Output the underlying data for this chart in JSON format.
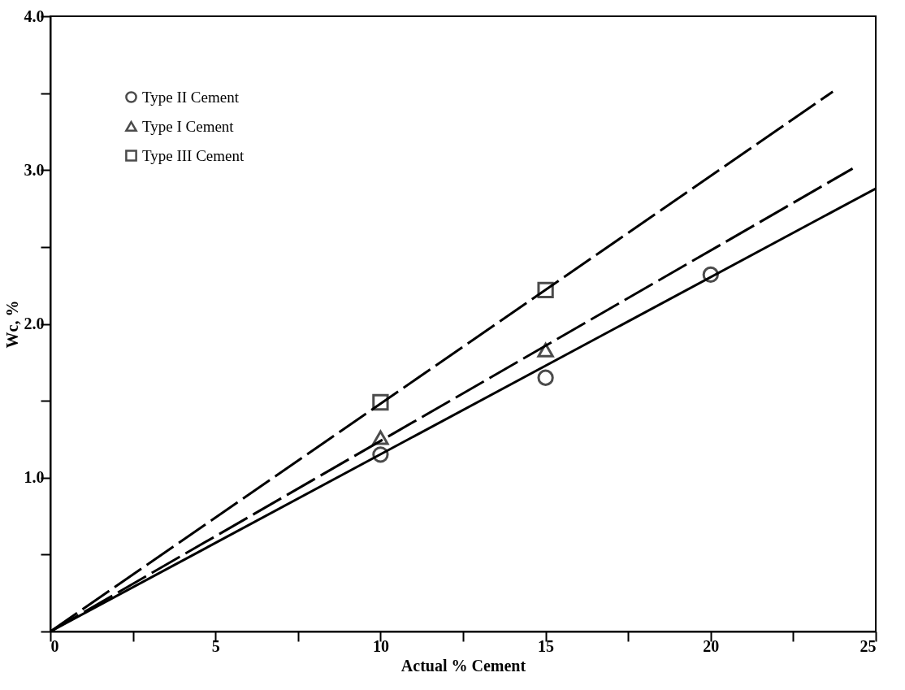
{
  "chart_data": {
    "type": "scatter",
    "xlabel": "Actual % Cement",
    "ylabel": "Wc, %",
    "xlim": [
      0,
      25
    ],
    "ylim": [
      0,
      4
    ],
    "xticks": [
      0,
      {
        "value": 2.5,
        "label": null
      },
      5,
      {
        "value": 7.5,
        "label": null
      },
      10,
      {
        "value": 12.5,
        "label": null
      },
      15,
      {
        "value": 17.5,
        "label": null
      },
      20,
      {
        "value": 22.5,
        "label": null
      },
      25
    ],
    "yticks": [
      {
        "value": 0,
        "label": null
      },
      {
        "value": 0.5,
        "label": null
      },
      {
        "value": 1,
        "label": "1.0"
      },
      {
        "value": 1.5,
        "label": null
      },
      {
        "value": 2,
        "label": "2.0"
      },
      {
        "value": 2.5,
        "label": null
      },
      {
        "value": 3,
        "label": "3.0"
      },
      {
        "value": 3.5,
        "label": null
      },
      {
        "value": 4,
        "label": "4.0"
      }
    ],
    "grid": false,
    "legend": "top left",
    "series": [
      {
        "name": "Type II Cement",
        "marker": "circle",
        "color": "#000000",
        "x": [
          10,
          15,
          20
        ],
        "values": [
          1.15,
          1.65,
          2.32
        ]
      },
      {
        "name": "Type  I Cement",
        "marker": "triangle",
        "color": "#000000",
        "x": [
          10,
          15
        ],
        "values": [
          1.26,
          1.83
        ]
      },
      {
        "name": "Type III Cement",
        "marker": "square",
        "color": "#000000",
        "x": [
          10,
          15
        ],
        "values": [
          1.49,
          2.22
        ]
      },
      {
        "type": "line",
        "line_style": "solid",
        "marker": "none",
        "color": "#000000",
        "x": [
          0,
          25
        ],
        "values": [
          0,
          2.88
        ]
      },
      {
        "type": "line",
        "line_style": "dashed",
        "marker": "none",
        "color": "#000000",
        "x": [
          0,
          24.3
        ],
        "values": [
          0,
          3.01
        ]
      },
      {
        "type": "line",
        "line_style": "dashed",
        "marker": "none",
        "color": "#000000",
        "x": [
          0,
          23.7
        ],
        "values": [
          0,
          3.51
        ]
      }
    ]
  }
}
